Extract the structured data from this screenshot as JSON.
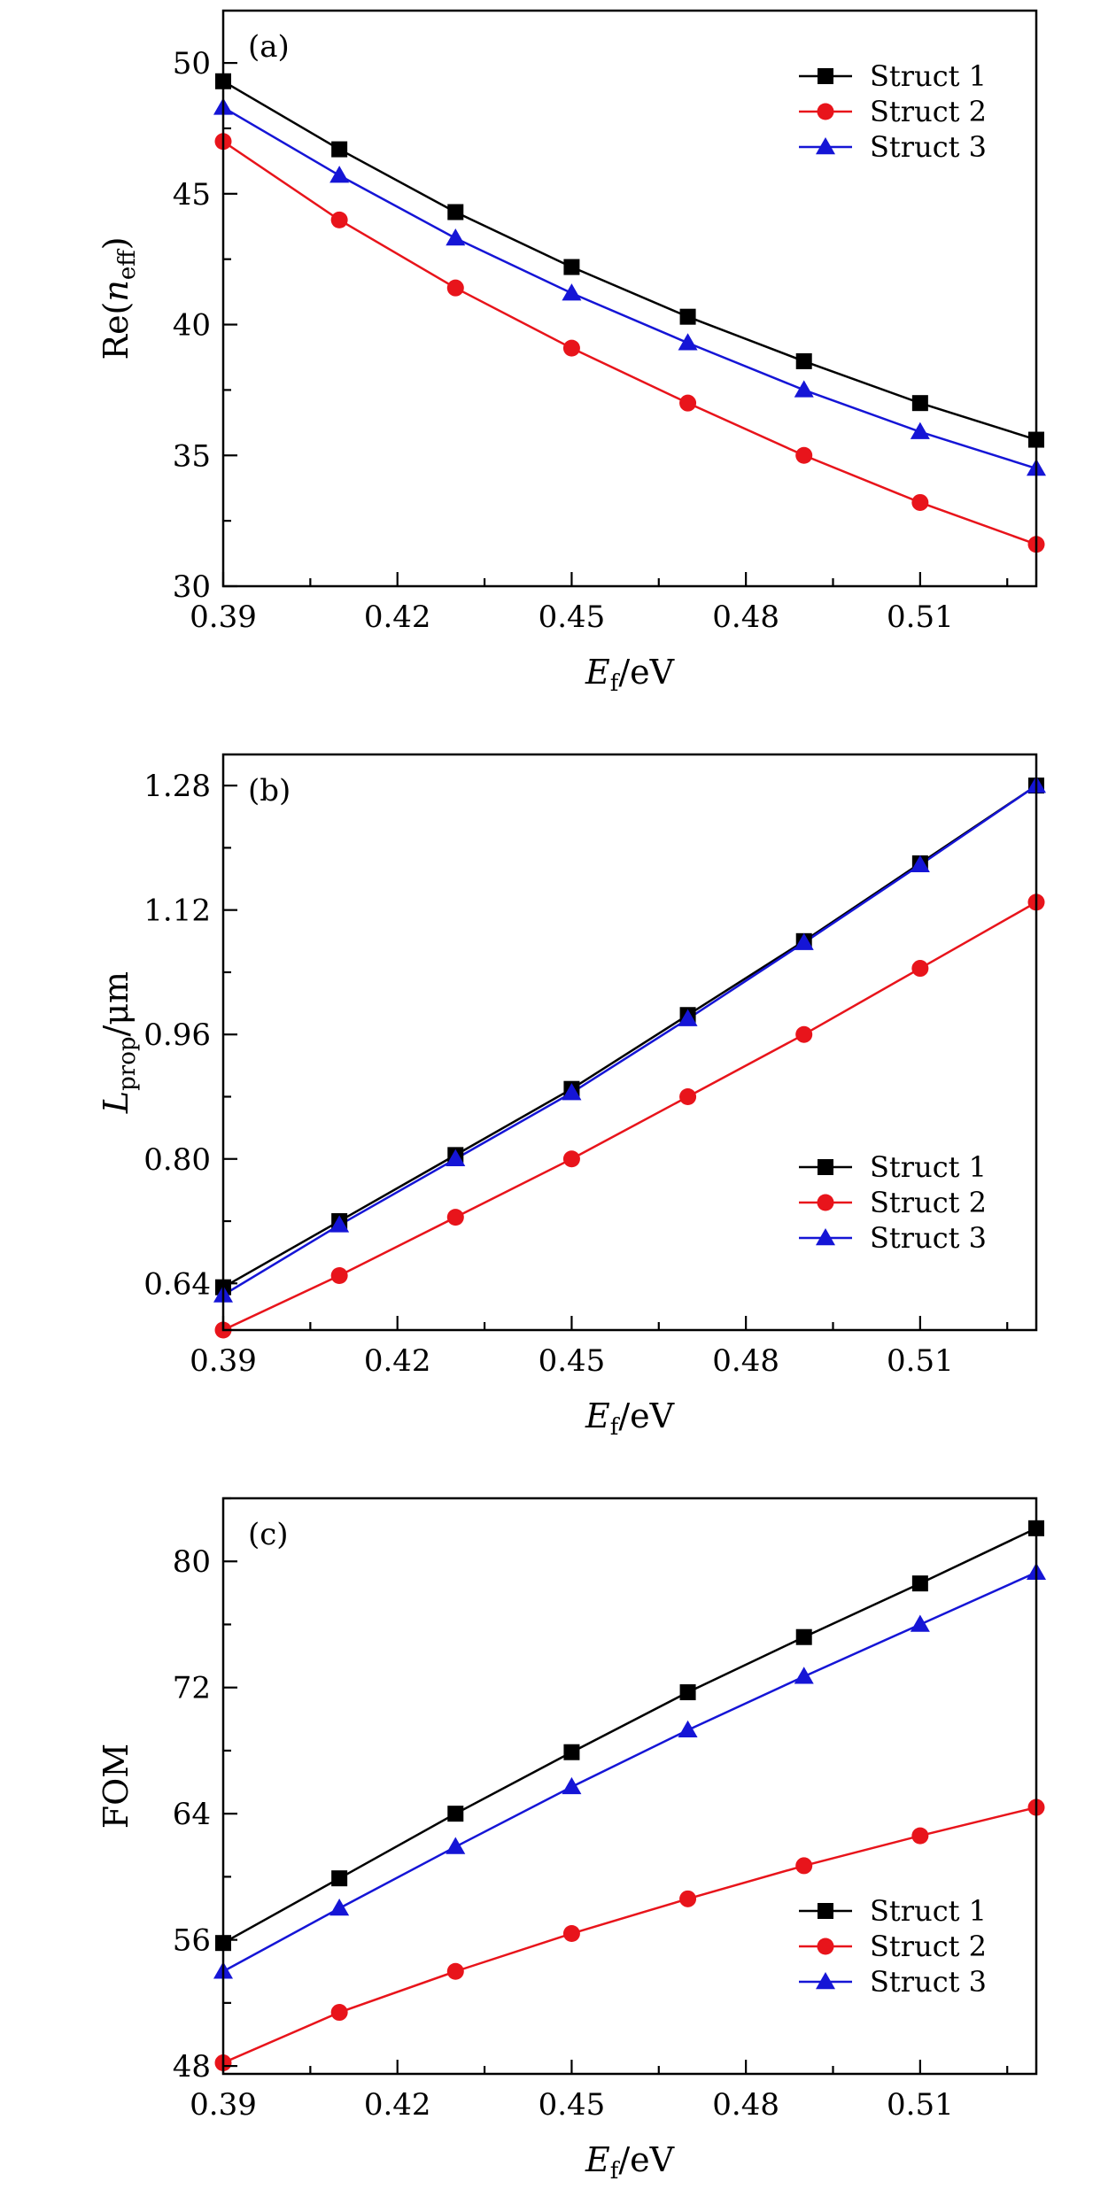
{
  "chart_data": [
    {
      "type": "line",
      "panel_label": "(a)",
      "xlabel_base": "E",
      "xlabel_sub": "f",
      "xlabel_unit": "/eV",
      "ylabel_base": "Re(",
      "ylabel_var": "n",
      "ylabel_sub": "eff",
      "ylabel_close": ")",
      "x": [
        0.39,
        0.41,
        0.43,
        0.45,
        0.47,
        0.49,
        0.51,
        0.53
      ],
      "xlim": [
        0.39,
        0.53
      ],
      "ylim": [
        30,
        52
      ],
      "xticks": [
        0.39,
        0.42,
        0.45,
        0.48,
        0.51
      ],
      "xtick_labels": [
        "0.39",
        "0.42",
        "0.45",
        "0.48",
        "0.51"
      ],
      "yticks": [
        30,
        35,
        40,
        45,
        50
      ],
      "ytick_labels": [
        "30",
        "35",
        "40",
        "45",
        "50"
      ],
      "legend_position": "top-right",
      "series": [
        {
          "name": "Struct 1",
          "color": "#000000",
          "marker": "square",
          "values": [
            49.3,
            46.7,
            44.3,
            42.2,
            40.3,
            38.6,
            37.0,
            35.6
          ]
        },
        {
          "name": "Struct 2",
          "color": "#e8141b",
          "marker": "circle",
          "values": [
            47.0,
            44.0,
            41.4,
            39.1,
            37.0,
            35.0,
            33.2,
            31.6
          ]
        },
        {
          "name": "Struct 3",
          "color": "#1515d6",
          "marker": "triangle",
          "values": [
            48.3,
            45.7,
            43.3,
            41.2,
            39.3,
            37.5,
            35.9,
            34.5
          ]
        }
      ]
    },
    {
      "type": "line",
      "panel_label": "(b)",
      "xlabel_base": "E",
      "xlabel_sub": "f",
      "xlabel_unit": "/eV",
      "ylabel_base": "L",
      "ylabel_sub": "prop",
      "ylabel_unit": "/μm",
      "x": [
        0.39,
        0.41,
        0.43,
        0.45,
        0.47,
        0.49,
        0.51,
        0.53
      ],
      "xlim": [
        0.39,
        0.53
      ],
      "ylim": [
        0.58,
        1.32
      ],
      "xticks": [
        0.39,
        0.42,
        0.45,
        0.48,
        0.51
      ],
      "xtick_labels": [
        "0.39",
        "0.42",
        "0.45",
        "0.48",
        "0.51"
      ],
      "yticks": [
        0.64,
        0.8,
        0.96,
        1.12,
        1.28
      ],
      "ytick_labels": [
        "0.64",
        "0.80",
        "0.96",
        "1.12",
        "1.28"
      ],
      "legend_position": "bottom-right",
      "series": [
        {
          "name": "Struct 1",
          "color": "#000000",
          "marker": "square",
          "values": [
            0.635,
            0.72,
            0.805,
            0.89,
            0.985,
            1.08,
            1.18,
            1.28
          ]
        },
        {
          "name": "Struct 2",
          "color": "#e8141b",
          "marker": "circle",
          "values": [
            0.58,
            0.65,
            0.725,
            0.8,
            0.88,
            0.96,
            1.045,
            1.13
          ]
        },
        {
          "name": "Struct 3",
          "color": "#1515d6",
          "marker": "triangle",
          "values": [
            0.625,
            0.715,
            0.8,
            0.885,
            0.98,
            1.078,
            1.178,
            1.28
          ]
        }
      ]
    },
    {
      "type": "line",
      "panel_label": "(c)",
      "xlabel_base": "E",
      "xlabel_sub": "f",
      "xlabel_unit": "/eV",
      "ylabel_text": "FOM",
      "x": [
        0.39,
        0.41,
        0.43,
        0.45,
        0.47,
        0.49,
        0.51,
        0.53
      ],
      "xlim": [
        0.39,
        0.53
      ],
      "ylim": [
        47.5,
        84
      ],
      "xticks": [
        0.39,
        0.42,
        0.45,
        0.48,
        0.51
      ],
      "xtick_labels": [
        "0.39",
        "0.42",
        "0.45",
        "0.48",
        "0.51"
      ],
      "yticks": [
        48,
        56,
        64,
        72,
        80
      ],
      "ytick_labels": [
        "48",
        "56",
        "64",
        "72",
        "80"
      ],
      "legend_position": "bottom-right",
      "series": [
        {
          "name": "Struct 1",
          "color": "#000000",
          "marker": "square",
          "values": [
            55.8,
            59.9,
            64.0,
            67.9,
            71.7,
            75.2,
            78.6,
            82.1
          ]
        },
        {
          "name": "Struct 2",
          "color": "#e8141b",
          "marker": "circle",
          "values": [
            48.2,
            51.4,
            54.0,
            56.4,
            58.6,
            60.7,
            62.6,
            64.4
          ]
        },
        {
          "name": "Struct 3",
          "color": "#1515d6",
          "marker": "triangle",
          "values": [
            54.0,
            58.0,
            61.9,
            65.7,
            69.3,
            72.7,
            76.0,
            79.3
          ]
        }
      ]
    }
  ]
}
